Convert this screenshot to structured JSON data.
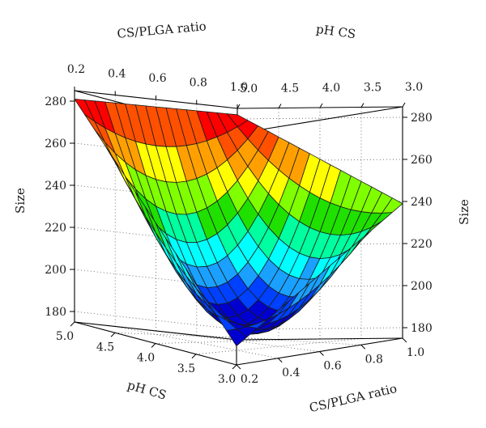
{
  "chart_data": {
    "type": "surface3d",
    "zlabel": "Size",
    "ratio_label": "CS/PLGA ratio",
    "ph_label": "pH CS",
    "ratio_range": [
      0.2,
      1.0
    ],
    "ph_range": [
      3.0,
      5.0
    ],
    "z_range": [
      175,
      285
    ],
    "ratio_ticks": [
      "0.2",
      "0.4",
      "0.6",
      "0.8",
      "1.0"
    ],
    "ph_ticks": [
      "5.0",
      "4.5",
      "4.0",
      "3.5",
      "3.0"
    ],
    "z_ticks": [
      "180",
      "200",
      "220",
      "240",
      "260",
      "280"
    ],
    "corner_values": [
      {
        "ratio": 0.2,
        "ph": 5.0,
        "size": 281
      },
      {
        "ratio": 1.0,
        "ph": 5.0,
        "size": 282
      },
      {
        "ratio": 1.0,
        "ph": 3.0,
        "size": 239
      },
      {
        "ratio": 0.2,
        "ph": 3.0,
        "size": 184
      }
    ],
    "minimum": {
      "ratio": 0.45,
      "ph": 3.5,
      "size": 183
    },
    "grid": true,
    "colormap": [
      "#0000d0",
      "#0040ff",
      "#1aa0ff",
      "#00ffff",
      "#00ffa0",
      "#20e000",
      "#80ff00",
      "#ffff00",
      "#ffa000",
      "#ff5000",
      "#ff0000"
    ]
  }
}
